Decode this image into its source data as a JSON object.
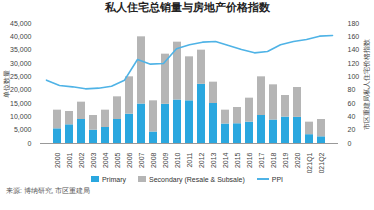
{
  "chart_data": {
    "type": "bar",
    "title": "私人住宅总销量与房地产价格指数",
    "stacked": true,
    "categories": [
      "2000",
      "2001",
      "2002",
      "2003",
      "2004",
      "2005",
      "2006",
      "2007",
      "2008",
      "2009",
      "2010",
      "2011",
      "2012",
      "2013",
      "2014",
      "2015",
      "2016",
      "2017",
      "2018",
      "2019",
      "2020",
      "2021Q1",
      "2021Q2"
    ],
    "series": [
      {
        "name": "Primary",
        "color": "#2aa7df",
        "type": "bar",
        "values": [
          5500,
          7000,
          9000,
          5000,
          6000,
          9000,
          11000,
          14800,
          4300,
          14700,
          16300,
          16000,
          22200,
          15000,
          7300,
          7400,
          8000,
          10500,
          8800,
          9900,
          9800,
          3300,
          2500
        ]
      },
      {
        "name": "Secondary (Resale & Subsale)",
        "color": "#b5b5b5",
        "type": "bar",
        "values": [
          7000,
          5000,
          6500,
          5500,
          6500,
          8500,
          14000,
          25200,
          11700,
          18800,
          21700,
          16500,
          12800,
          8000,
          5200,
          6100,
          9000,
          14500,
          13200,
          8100,
          11200,
          4700,
          6500
        ]
      },
      {
        "name": "PPI",
        "color": "#4fb3e6",
        "type": "line",
        "axis": "y2",
        "values": [
          95,
          87,
          85,
          82,
          83,
          86,
          95,
          126,
          119,
          120,
          142,
          148,
          152,
          153,
          147,
          141,
          136,
          138,
          148,
          153,
          156,
          161,
          162
        ]
      }
    ],
    "ylim": [
      0,
      45000
    ],
    "yticks": [
      0,
      {
        "value": 5000,
        "label": "5,000"
      },
      {
        "value": 10000,
        "label": "10,000"
      },
      {
        "value": 15000,
        "label": "15,000"
      },
      {
        "value": 20000,
        "label": "20,000"
      },
      {
        "value": 25000,
        "label": "25,000"
      },
      {
        "value": 30000,
        "label": "30,000"
      },
      {
        "value": 35000,
        "label": "35,000"
      },
      {
        "value": 40000,
        "label": "40,000"
      },
      {
        "value": 45000,
        "label": "45,000"
      }
    ],
    "y2lim": [
      0,
      180
    ],
    "y2ticks": [
      0,
      20,
      40,
      60,
      80,
      100,
      120,
      140,
      160,
      180
    ],
    "ylabel": "单位数量",
    "y2label": "市区重建局私人住宅价格指数",
    "legend": "bottom",
    "source": "来源: 博纳研究, 市区重建局"
  }
}
